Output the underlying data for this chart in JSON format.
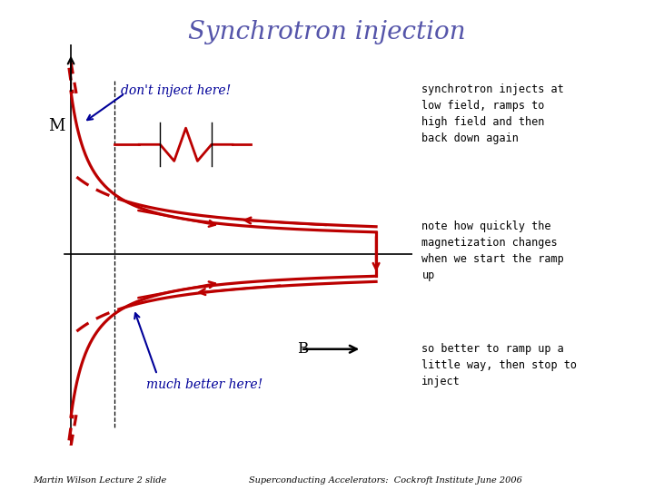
{
  "title": "Synchrotron injection",
  "title_color": "#5555aa",
  "title_fontsize": 20,
  "title_style": "italic",
  "bg_color": "#ffffff",
  "text_right_1": "synchrotron injects at\nlow field, ramps to\nhigh field and then\nback down again",
  "text_right_2": "note how quickly the\nmagnetization changes\nwhen we start the ramp\nup",
  "text_right_3": "so better to ramp up a\nlittle way, then stop to\ninject",
  "label_dont": "don't inject here!",
  "label_better": "much better here!",
  "label_M": "M",
  "label_B": "B",
  "footer_left": "Martin Wilson Lecture 2 slide",
  "footer_right": "Superconducting Accelerators:  Cockroft Institute June 2006",
  "curve_color": "#bb0000",
  "annotation_color": "#000099"
}
